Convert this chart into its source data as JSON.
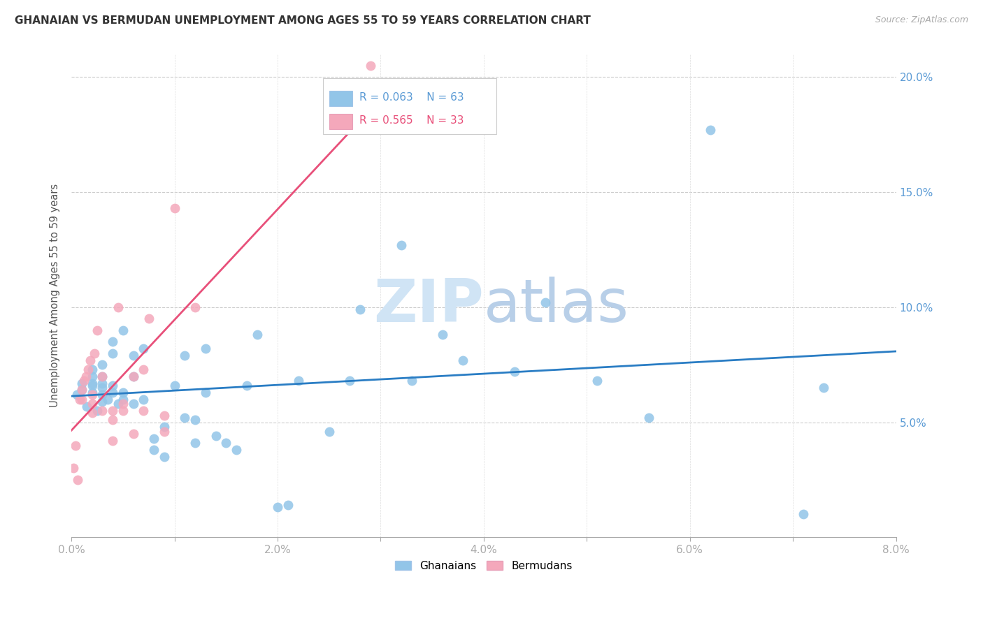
{
  "title": "GHANAIAN VS BERMUDAN UNEMPLOYMENT AMONG AGES 55 TO 59 YEARS CORRELATION CHART",
  "source": "Source: ZipAtlas.com",
  "ylabel": "Unemployment Among Ages 55 to 59 years",
  "xlim": [
    0.0,
    0.08
  ],
  "ylim": [
    0.0,
    0.21
  ],
  "xticks": [
    0.0,
    0.01,
    0.02,
    0.03,
    0.04,
    0.05,
    0.06,
    0.07,
    0.08
  ],
  "xticklabels": [
    "0.0%",
    "",
    "2.0%",
    "",
    "4.0%",
    "",
    "6.0%",
    "",
    "8.0%"
  ],
  "yticks": [
    0.0,
    0.05,
    0.1,
    0.15,
    0.2
  ],
  "yticklabels": [
    "",
    "5.0%",
    "10.0%",
    "15.0%",
    "20.0%"
  ],
  "ghanaian_color": "#92c5e8",
  "bermudan_color": "#f4a8bb",
  "trend_ghanaian_color": "#2a7dc4",
  "trend_bermudan_color": "#e8507a",
  "legend_R_ghana": "R = 0.063",
  "legend_N_ghana": "N = 63",
  "legend_R_bermuda": "R = 0.565",
  "legend_N_bermuda": "N = 33",
  "ghanaian_x": [
    0.0005,
    0.001,
    0.001,
    0.0015,
    0.002,
    0.002,
    0.002,
    0.002,
    0.002,
    0.0025,
    0.003,
    0.003,
    0.003,
    0.003,
    0.003,
    0.003,
    0.0035,
    0.004,
    0.004,
    0.004,
    0.004,
    0.0045,
    0.005,
    0.005,
    0.005,
    0.006,
    0.006,
    0.006,
    0.007,
    0.007,
    0.008,
    0.008,
    0.009,
    0.009,
    0.01,
    0.011,
    0.011,
    0.012,
    0.012,
    0.013,
    0.013,
    0.014,
    0.015,
    0.016,
    0.017,
    0.018,
    0.02,
    0.021,
    0.022,
    0.025,
    0.027,
    0.028,
    0.032,
    0.033,
    0.036,
    0.038,
    0.043,
    0.046,
    0.051,
    0.056,
    0.062,
    0.071,
    0.073
  ],
  "ghanaian_y": [
    0.062,
    0.064,
    0.067,
    0.057,
    0.063,
    0.066,
    0.07,
    0.073,
    0.067,
    0.055,
    0.059,
    0.062,
    0.065,
    0.067,
    0.07,
    0.075,
    0.06,
    0.063,
    0.066,
    0.08,
    0.085,
    0.058,
    0.06,
    0.063,
    0.09,
    0.058,
    0.07,
    0.079,
    0.06,
    0.082,
    0.038,
    0.043,
    0.035,
    0.048,
    0.066,
    0.052,
    0.079,
    0.041,
    0.051,
    0.063,
    0.082,
    0.044,
    0.041,
    0.038,
    0.066,
    0.088,
    0.013,
    0.014,
    0.068,
    0.046,
    0.068,
    0.099,
    0.127,
    0.068,
    0.088,
    0.077,
    0.072,
    0.102,
    0.068,
    0.052,
    0.177,
    0.01,
    0.065
  ],
  "bermudan_x": [
    0.0002,
    0.0004,
    0.0006,
    0.0008,
    0.001,
    0.001,
    0.0012,
    0.0014,
    0.0016,
    0.0018,
    0.002,
    0.002,
    0.002,
    0.0022,
    0.0025,
    0.003,
    0.003,
    0.004,
    0.004,
    0.004,
    0.0045,
    0.005,
    0.005,
    0.006,
    0.006,
    0.007,
    0.007,
    0.0075,
    0.009,
    0.009,
    0.01,
    0.012,
    0.029
  ],
  "bermudan_y": [
    0.03,
    0.04,
    0.025,
    0.06,
    0.06,
    0.064,
    0.068,
    0.07,
    0.073,
    0.077,
    0.054,
    0.058,
    0.062,
    0.08,
    0.09,
    0.055,
    0.07,
    0.042,
    0.051,
    0.055,
    0.1,
    0.055,
    0.058,
    0.045,
    0.07,
    0.055,
    0.073,
    0.095,
    0.046,
    0.053,
    0.143,
    0.1,
    0.205
  ]
}
